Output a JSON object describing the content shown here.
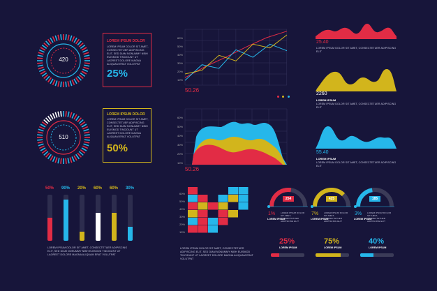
{
  "colors": {
    "red": "#e22c45",
    "yellow": "#d2b51c",
    "blue": "#26b7ea",
    "white": "#ffffff",
    "bg": "#17153a"
  },
  "lorem": {
    "title": "LOREM IPSUM DOLOR",
    "long": "LOREM IPSUM DOLOR SIT AMET, CONSECTETUER ADIPISCING ELIT, SED DIAM NONUMMY NIBH EUISMOD TINCIDUNT UT LAOREET DOLORE MAGNA ALIQUAM ERAT VOLUTPAT",
    "short": "LOREM IPSUM DOLOR SIT AMET, CONSECTETUER ADIPISCING ELIT",
    "tiny": "LOREM IPSUM",
    "two": "LOREM IPSUM DOLOR SIT AMET, CONSECTETUER ADIPISCING ELIT"
  },
  "rings": [
    {
      "value": "420",
      "percent": "25%"
    },
    {
      "value": "510",
      "percent": "50%"
    }
  ],
  "line_chart": {
    "ticks": [
      "60%",
      "50%",
      "40%",
      "30%",
      "20%",
      "10%"
    ],
    "value": "50.26",
    "series": [
      {
        "color": "#e22c45",
        "values": [
          8,
          20,
          30,
          41,
          51,
          58
        ]
      },
      {
        "color": "#26b7ea",
        "values": [
          5,
          22,
          18,
          38,
          30,
          44,
          37
        ]
      },
      {
        "color": "#d2b51c",
        "values": [
          12,
          16,
          32,
          26,
          44,
          40,
          54
        ]
      }
    ]
  },
  "area_chart": {
    "ticks": [
      "60%",
      "50%",
      "40%",
      "30%",
      "20%",
      "10%"
    ],
    "value": "50.26"
  },
  "waves": [
    {
      "value": "25.40"
    },
    {
      "value": "2260"
    },
    {
      "value": "55.40"
    }
  ],
  "vbars": [
    {
      "label": "50%",
      "color": "#e22c45",
      "fill": 0.5
    },
    {
      "label": "90%",
      "color": "#26b7ea",
      "fill": 0.9
    },
    {
      "label": "20%",
      "color": "#d2b51c",
      "fill": 0.2
    },
    {
      "label": "60%",
      "color": "#ffffff",
      "fill": 0.6
    },
    {
      "label": "60%",
      "color": "#d2b51c",
      "fill": 0.6
    },
    {
      "label": "30%",
      "color": "#26b7ea",
      "fill": 0.3
    }
  ],
  "heatmap": {
    "ticks": [
      "60%",
      "50%",
      "40%",
      "30%",
      "20%",
      "10%"
    ]
  },
  "gauges": [
    {
      "value": "254",
      "pct": "1%",
      "color": "#e22c45",
      "fill": 0.55
    },
    {
      "value": "425",
      "pct": "7%",
      "color": "#d2b51c",
      "fill": 0.75
    },
    {
      "value": "185",
      "pct": "3%",
      "color": "#26b7ea",
      "fill": 0.45
    }
  ],
  "hbars": [
    {
      "label": "25%",
      "color": "#e22c45",
      "fill": 0.25
    },
    {
      "label": "75%",
      "color": "#d2b51c",
      "fill": 0.75
    },
    {
      "label": "40%",
      "color": "#26b7ea",
      "fill": 0.4
    }
  ]
}
